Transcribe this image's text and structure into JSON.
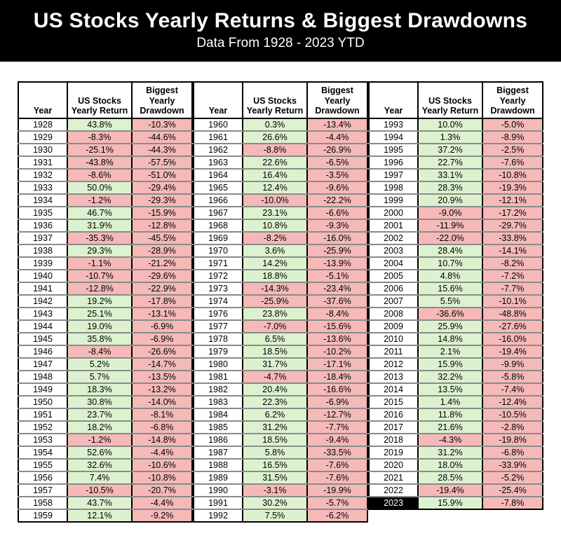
{
  "header": {
    "title": "US Stocks Yearly Returns & Biggest Drawdowns",
    "subtitle": "Data From 1928 - 2023 YTD"
  },
  "columns": {
    "year": "Year",
    "return": "US Stocks Yearly Return",
    "drawdown": "Biggest Yearly Drawdown"
  },
  "colors": {
    "positive_bg": "#dcf2cf",
    "negative_bg": "#f5b9b8",
    "highlight_year_bg": "#000000",
    "highlight_year_text": "#ffffff",
    "header_band_bg": "#000000",
    "header_text": "#ffffff"
  },
  "highlight_year": "2023",
  "chart_data": {
    "type": "table",
    "title": "US Stocks Yearly Returns & Biggest Drawdowns",
    "subtitle": "Data From 1928 - 2023 YTD",
    "columns": [
      "Year",
      "US Stocks Yearly Return",
      "Biggest Yearly Drawdown"
    ],
    "column_groups": [
      {
        "rows": [
          [
            "1928",
            "43.8%",
            "-10.3%"
          ],
          [
            "1929",
            "-8.3%",
            "-44.6%"
          ],
          [
            "1930",
            "-25.1%",
            "-44.3%"
          ],
          [
            "1931",
            "-43.8%",
            "-57.5%"
          ],
          [
            "1932",
            "-8.6%",
            "-51.0%"
          ],
          [
            "1933",
            "50.0%",
            "-29.4%"
          ],
          [
            "1934",
            "-1.2%",
            "-29.3%"
          ],
          [
            "1935",
            "46.7%",
            "-15.9%"
          ],
          [
            "1936",
            "31.9%",
            "-12.8%"
          ],
          [
            "1937",
            "-35.3%",
            "-45.5%"
          ],
          [
            "1938",
            "29.3%",
            "-28.9%"
          ],
          [
            "1939",
            "-1.1%",
            "-21.2%"
          ],
          [
            "1940",
            "-10.7%",
            "-29.6%"
          ],
          [
            "1941",
            "-12.8%",
            "-22.9%"
          ],
          [
            "1942",
            "19.2%",
            "-17.8%"
          ],
          [
            "1943",
            "25.1%",
            "-13.1%"
          ],
          [
            "1944",
            "19.0%",
            "-6.9%"
          ],
          [
            "1945",
            "35.8%",
            "-6.9%"
          ],
          [
            "1946",
            "-8.4%",
            "-26.6%"
          ],
          [
            "1947",
            "5.2%",
            "-14.7%"
          ],
          [
            "1948",
            "5.7%",
            "-13.5%"
          ],
          [
            "1949",
            "18.3%",
            "-13.2%"
          ],
          [
            "1950",
            "30.8%",
            "-14.0%"
          ],
          [
            "1951",
            "23.7%",
            "-8.1%"
          ],
          [
            "1952",
            "18.2%",
            "-6.8%"
          ],
          [
            "1953",
            "-1.2%",
            "-14.8%"
          ],
          [
            "1954",
            "52.6%",
            "-4.4%"
          ],
          [
            "1955",
            "32.6%",
            "-10.6%"
          ],
          [
            "1956",
            "7.4%",
            "-10.8%"
          ],
          [
            "1957",
            "-10.5%",
            "-20.7%"
          ],
          [
            "1958",
            "43.7%",
            "-4.4%"
          ],
          [
            "1959",
            "12.1%",
            "-9.2%"
          ]
        ]
      },
      {
        "rows": [
          [
            "1960",
            "0.3%",
            "-13.4%"
          ],
          [
            "1961",
            "26.6%",
            "-4.4%"
          ],
          [
            "1962",
            "-8.8%",
            "-26.9%"
          ],
          [
            "1963",
            "22.6%",
            "-6.5%"
          ],
          [
            "1964",
            "16.4%",
            "-3.5%"
          ],
          [
            "1965",
            "12.4%",
            "-9.6%"
          ],
          [
            "1966",
            "-10.0%",
            "-22.2%"
          ],
          [
            "1967",
            "23.1%",
            "-6.6%"
          ],
          [
            "1968",
            "10.8%",
            "-9.3%"
          ],
          [
            "1969",
            "-8.2%",
            "-16.0%"
          ],
          [
            "1970",
            "3.6%",
            "-25.9%"
          ],
          [
            "1971",
            "14.2%",
            "-13.9%"
          ],
          [
            "1972",
            "18.8%",
            "-5.1%"
          ],
          [
            "1973",
            "-14.3%",
            "-23.4%"
          ],
          [
            "1974",
            "-25.9%",
            "-37.6%"
          ],
          [
            "1976",
            "23.8%",
            "-8.4%"
          ],
          [
            "1977",
            "-7.0%",
            "-15.6%"
          ],
          [
            "1978",
            "6.5%",
            "-13.6%"
          ],
          [
            "1979",
            "18.5%",
            "-10.2%"
          ],
          [
            "1980",
            "31.7%",
            "-17.1%"
          ],
          [
            "1981",
            "-4.7%",
            "-18.4%"
          ],
          [
            "1982",
            "20.4%",
            "-16.6%"
          ],
          [
            "1983",
            "22.3%",
            "-6.9%"
          ],
          [
            "1984",
            "6.2%",
            "-12.7%"
          ],
          [
            "1985",
            "31.2%",
            "-7.7%"
          ],
          [
            "1986",
            "18.5%",
            "-9.4%"
          ],
          [
            "1987",
            "5.8%",
            "-33.5%"
          ],
          [
            "1988",
            "16.5%",
            "-7.6%"
          ],
          [
            "1989",
            "31.5%",
            "-7.6%"
          ],
          [
            "1990",
            "-3.1%",
            "-19.9%"
          ],
          [
            "1991",
            "30.2%",
            "-5.7%"
          ],
          [
            "1992",
            "7.5%",
            "-6.2%"
          ]
        ]
      },
      {
        "rows": [
          [
            "1993",
            "10.0%",
            "-5.0%"
          ],
          [
            "1994",
            "1.3%",
            "-8.9%"
          ],
          [
            "1995",
            "37.2%",
            "-2.5%"
          ],
          [
            "1996",
            "22.7%",
            "-7.6%"
          ],
          [
            "1997",
            "33.1%",
            "-10.8%"
          ],
          [
            "1998",
            "28.3%",
            "-19.3%"
          ],
          [
            "1999",
            "20.9%",
            "-12.1%"
          ],
          [
            "2000",
            "-9.0%",
            "-17.2%"
          ],
          [
            "2001",
            "-11.9%",
            "-29.7%"
          ],
          [
            "2002",
            "-22.0%",
            "-33.8%"
          ],
          [
            "2003",
            "28.4%",
            "-14.1%"
          ],
          [
            "2004",
            "10.7%",
            "-8.2%"
          ],
          [
            "2005",
            "4.8%",
            "-7.2%"
          ],
          [
            "2006",
            "15.6%",
            "-7.7%"
          ],
          [
            "2007",
            "5.5%",
            "-10.1%"
          ],
          [
            "2008",
            "-36.6%",
            "-48.8%"
          ],
          [
            "2009",
            "25.9%",
            "-27.6%"
          ],
          [
            "2010",
            "14.8%",
            "-16.0%"
          ],
          [
            "2011",
            "2.1%",
            "-19.4%"
          ],
          [
            "2012",
            "15.9%",
            "-9.9%"
          ],
          [
            "2013",
            "32.2%",
            "-5.8%"
          ],
          [
            "2014",
            "13.5%",
            "-7.4%"
          ],
          [
            "2015",
            "1.4%",
            "-12.4%"
          ],
          [
            "2016",
            "11.8%",
            "-10.5%"
          ],
          [
            "2017",
            "21.6%",
            "-2.8%"
          ],
          [
            "2018",
            "-4.3%",
            "-19.8%"
          ],
          [
            "2019",
            "31.2%",
            "-6.8%"
          ],
          [
            "2020",
            "18.0%",
            "-33.9%"
          ],
          [
            "2021",
            "28.5%",
            "-5.2%"
          ],
          [
            "2022",
            "-19.4%",
            "-25.4%"
          ],
          [
            "2023",
            "15.9%",
            "-7.8%"
          ]
        ]
      }
    ]
  }
}
